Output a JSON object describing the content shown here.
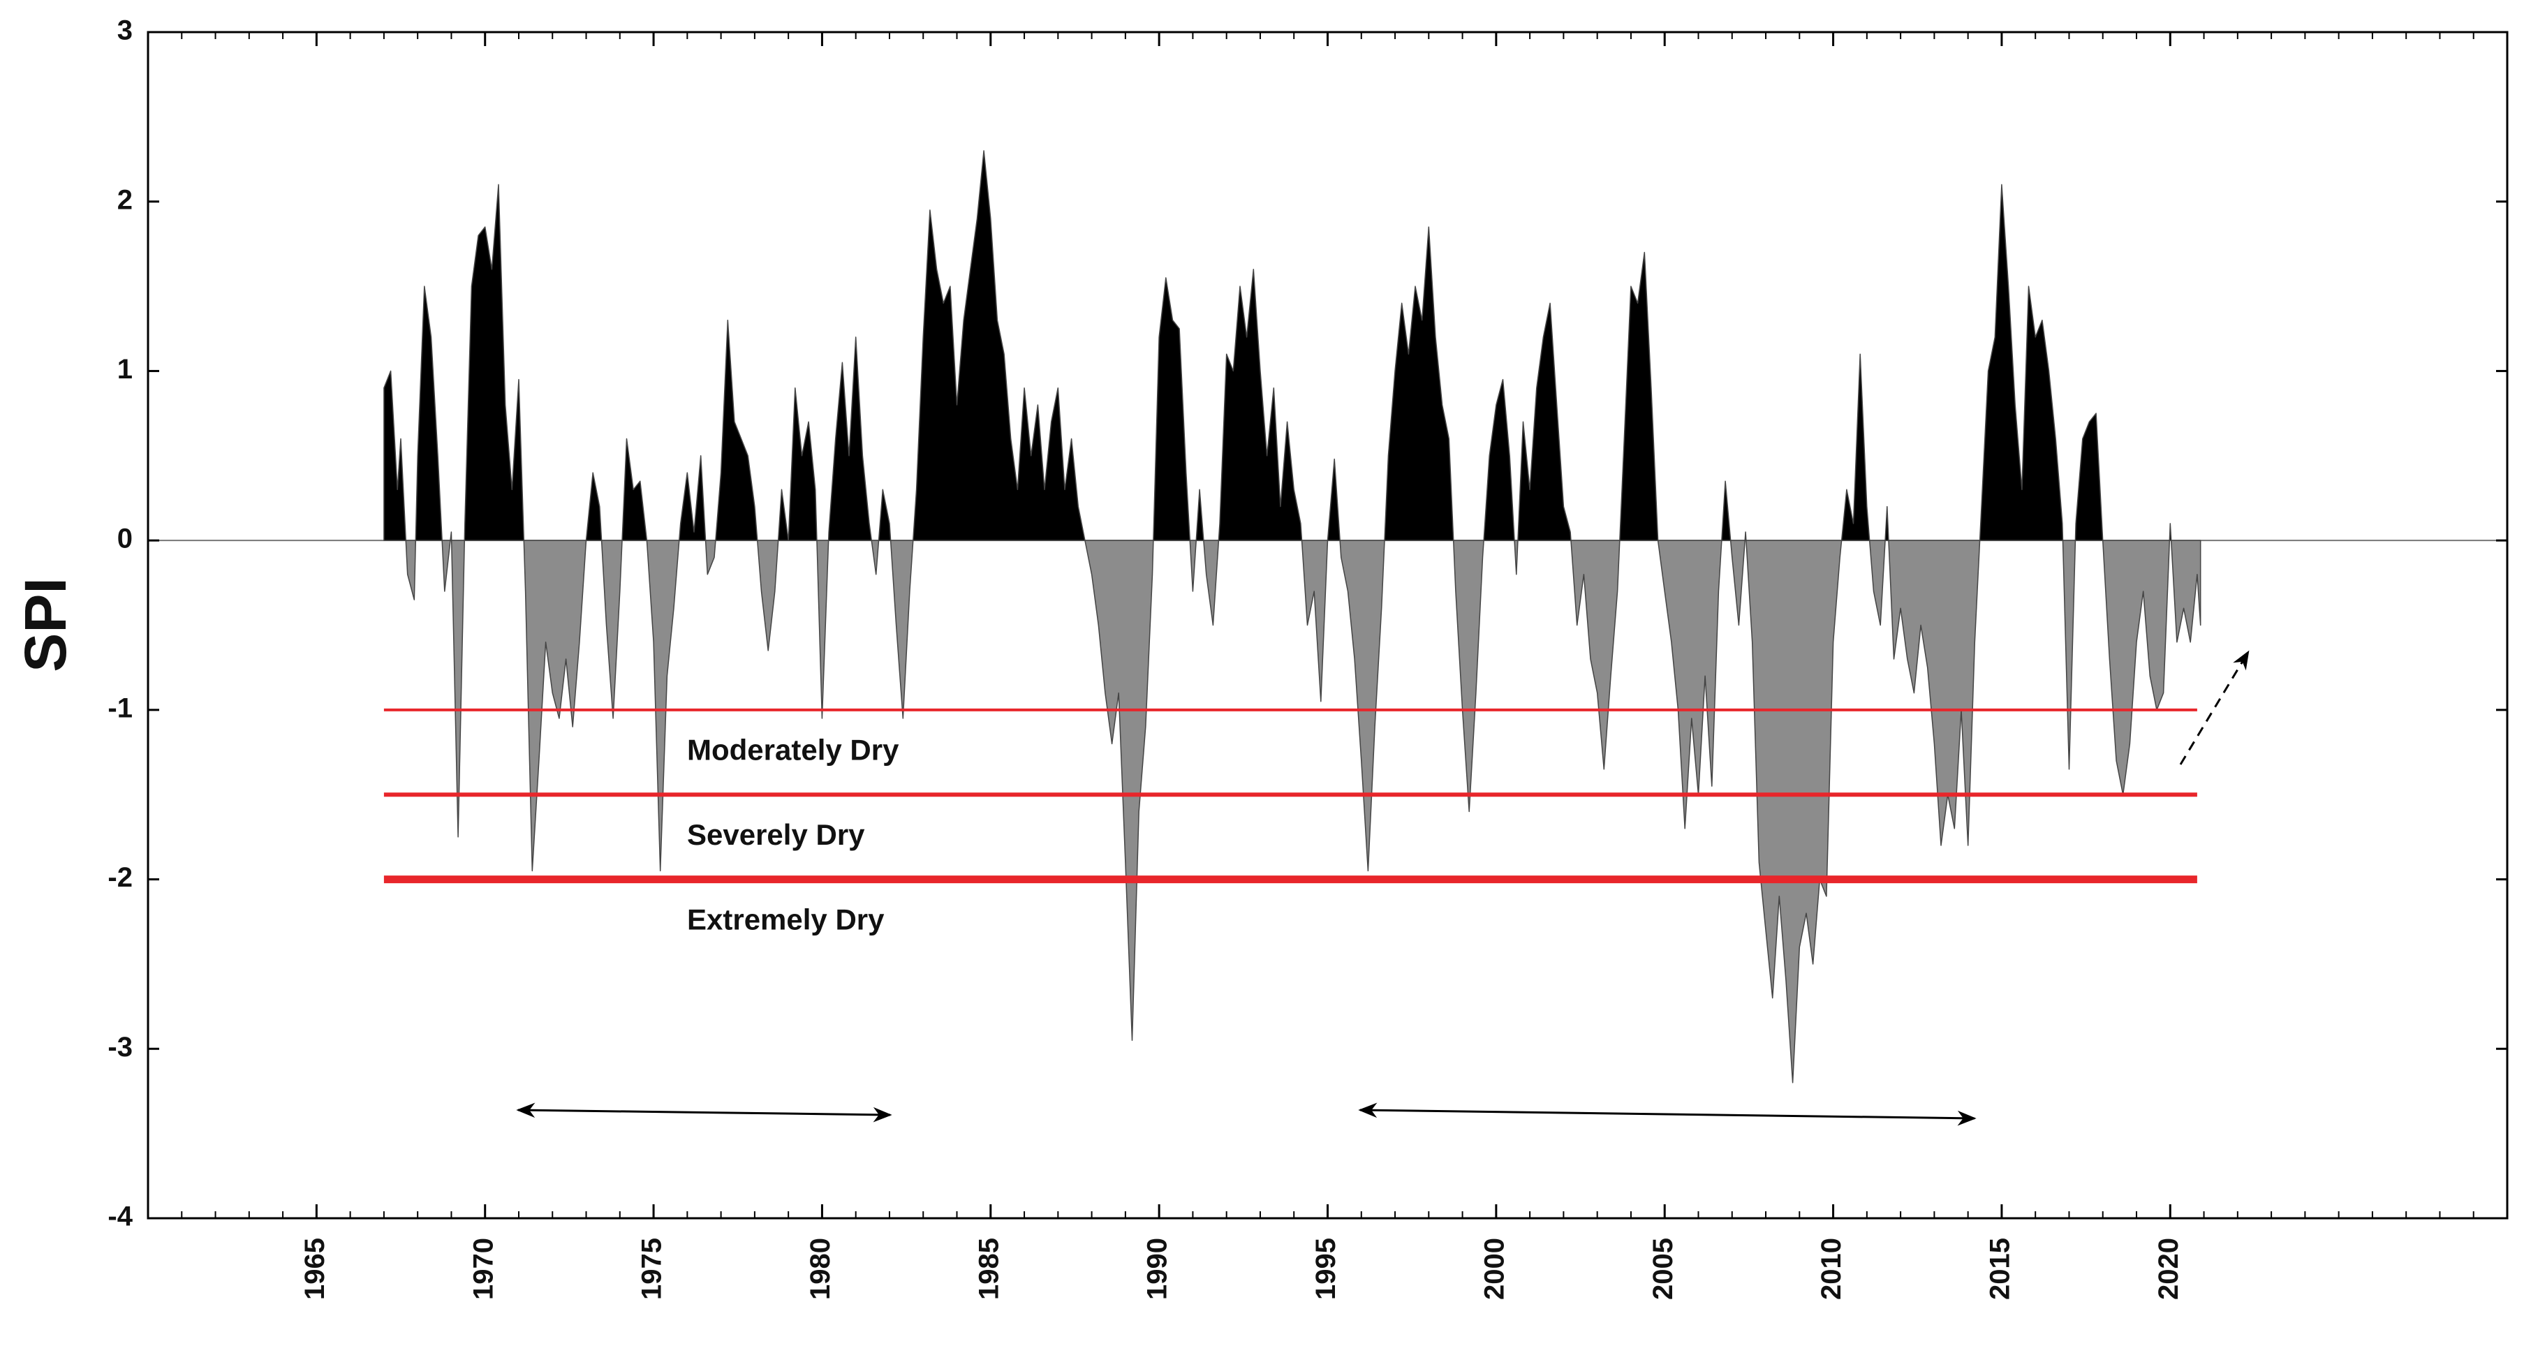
{
  "chart_data": {
    "type": "area",
    "ylabel": "SPI",
    "xlim": [
      1960,
      2030
    ],
    "xticks": [
      1965,
      1970,
      1975,
      1980,
      1985,
      1990,
      1995,
      2000,
      2005,
      2010,
      2015,
      2020
    ],
    "xminorticks": [
      1960,
      1961,
      1962,
      1963,
      1964,
      1965,
      1966,
      1967,
      1968,
      1969,
      1970,
      1971,
      1972,
      1973,
      1974,
      1975,
      1976,
      1977,
      1978,
      1979,
      1980,
      1981,
      1982,
      1983,
      1984,
      1985,
      1986,
      1987,
      1988,
      1989,
      1990,
      1991,
      1992,
      1993,
      1994,
      1995,
      1996,
      1997,
      1998,
      1999,
      2000,
      2001,
      2002,
      2003,
      2004,
      2005,
      2006,
      2007,
      2008,
      2009,
      2010,
      2011,
      2012,
      2013,
      2014,
      2015,
      2016,
      2017,
      2018,
      2019,
      2020,
      2021,
      2022,
      2023,
      2024,
      2025,
      2026,
      2027,
      2028,
      2029,
      2030
    ],
    "ylim": [
      -4,
      3
    ],
    "yticks": [
      -4,
      -3,
      -2,
      -1,
      0,
      1,
      2,
      3
    ],
    "positive_color": "#000000",
    "negative_color": "#8c8c8c",
    "thresholds": [
      {
        "value": -1,
        "label": "Moderately Dry",
        "color": "#e8262b"
      },
      {
        "value": -1.5,
        "label": "Severely Dry",
        "color": "#e8262b"
      },
      {
        "value": -2,
        "label": "Extremely Dry",
        "color": "#e8262b"
      }
    ],
    "threshold_span": [
      1967,
      2020.8
    ],
    "x": [
      1967.0,
      1967.2,
      1967.4,
      1967.5,
      1967.7,
      1967.9,
      1968.0,
      1968.2,
      1968.4,
      1968.6,
      1968.8,
      1969.0,
      1969.2,
      1969.4,
      1969.6,
      1969.8,
      1970.0,
      1970.2,
      1970.4,
      1970.6,
      1970.8,
      1971.0,
      1971.2,
      1971.4,
      1971.6,
      1971.8,
      1972.0,
      1972.2,
      1972.4,
      1972.6,
      1972.8,
      1973.0,
      1973.2,
      1973.4,
      1973.6,
      1973.8,
      1974.0,
      1974.2,
      1974.4,
      1974.6,
      1974.8,
      1975.0,
      1975.2,
      1975.4,
      1975.6,
      1975.8,
      1976.0,
      1976.2,
      1976.4,
      1976.6,
      1976.8,
      1977.0,
      1977.2,
      1977.4,
      1977.6,
      1977.8,
      1978.0,
      1978.2,
      1978.4,
      1978.6,
      1978.8,
      1979.0,
      1979.2,
      1979.4,
      1979.6,
      1979.8,
      1980.0,
      1980.2,
      1980.4,
      1980.6,
      1980.8,
      1981.0,
      1981.2,
      1981.4,
      1981.6,
      1981.8,
      1982.0,
      1982.2,
      1982.4,
      1982.6,
      1982.8,
      1983.0,
      1983.2,
      1983.4,
      1983.6,
      1983.8,
      1984.0,
      1984.2,
      1984.4,
      1984.6,
      1984.8,
      1985.0,
      1985.2,
      1985.4,
      1985.6,
      1985.8,
      1986.0,
      1986.2,
      1986.4,
      1986.6,
      1986.8,
      1987.0,
      1987.2,
      1987.4,
      1987.6,
      1987.8,
      1988.0,
      1988.2,
      1988.4,
      1988.6,
      1988.8,
      1989.0,
      1989.2,
      1989.4,
      1989.6,
      1989.8,
      1990.0,
      1990.2,
      1990.4,
      1990.6,
      1990.8,
      1991.0,
      1991.2,
      1991.4,
      1991.6,
      1991.8,
      1992.0,
      1992.2,
      1992.4,
      1992.6,
      1992.8,
      1993.0,
      1993.2,
      1993.4,
      1993.6,
      1993.8,
      1994.0,
      1994.2,
      1994.4,
      1994.6,
      1994.8,
      1995.0,
      1995.2,
      1995.4,
      1995.6,
      1995.8,
      1996.0,
      1996.2,
      1996.4,
      1996.6,
      1996.8,
      1997.0,
      1997.2,
      1997.4,
      1997.6,
      1997.8,
      1998.0,
      1998.2,
      1998.4,
      1998.6,
      1998.8,
      1999.0,
      1999.2,
      1999.4,
      1999.6,
      1999.8,
      2000.0,
      2000.2,
      2000.4,
      2000.6,
      2000.8,
      2001.0,
      2001.2,
      2001.4,
      2001.6,
      2001.8,
      2002.0,
      2002.2,
      2002.4,
      2002.6,
      2002.8,
      2003.0,
      2003.2,
      2003.4,
      2003.6,
      2003.8,
      2004.0,
      2004.2,
      2004.4,
      2004.6,
      2004.8,
      2005.0,
      2005.2,
      2005.4,
      2005.6,
      2005.8,
      2006.0,
      2006.2,
      2006.4,
      2006.6,
      2006.8,
      2007.0,
      2007.2,
      2007.4,
      2007.6,
      2007.8,
      2008.0,
      2008.2,
      2008.4,
      2008.6,
      2008.8,
      2009.0,
      2009.2,
      2009.4,
      2009.6,
      2009.8,
      2010.0,
      2010.2,
      2010.4,
      2010.6,
      2010.8,
      2011.0,
      2011.2,
      2011.4,
      2011.6,
      2011.8,
      2012.0,
      2012.2,
      2012.4,
      2012.6,
      2012.8,
      2013.0,
      2013.2,
      2013.4,
      2013.6,
      2013.8,
      2014.0,
      2014.2,
      2014.4,
      2014.6,
      2014.8,
      2015.0,
      2015.2,
      2015.4,
      2015.6,
      2015.8,
      2016.0,
      2016.2,
      2016.4,
      2016.6,
      2016.8,
      2017.0,
      2017.2,
      2017.4,
      2017.6,
      2017.8,
      2018.0,
      2018.2,
      2018.4,
      2018.6,
      2018.8,
      2019.0,
      2019.2,
      2019.4,
      2019.6,
      2019.8,
      2020.0,
      2020.2,
      2020.4,
      2020.6,
      2020.8,
      2020.9
    ],
    "values": [
      0.9,
      1.0,
      0.3,
      0.6,
      -0.2,
      -0.35,
      0.5,
      1.5,
      1.2,
      0.5,
      -0.3,
      0.05,
      -1.75,
      0.1,
      1.5,
      1.8,
      1.85,
      1.6,
      2.1,
      0.8,
      0.3,
      0.95,
      -0.3,
      -1.95,
      -1.3,
      -0.6,
      -0.9,
      -1.05,
      -0.7,
      -1.1,
      -0.6,
      0.0,
      0.4,
      0.2,
      -0.5,
      -1.05,
      -0.3,
      0.6,
      0.3,
      0.35,
      0.0,
      -0.6,
      -1.95,
      -0.8,
      -0.4,
      0.1,
      0.4,
      0.05,
      0.5,
      -0.2,
      -0.1,
      0.4,
      1.3,
      0.7,
      0.6,
      0.5,
      0.2,
      -0.3,
      -0.65,
      -0.3,
      0.3,
      0.0,
      0.9,
      0.5,
      0.7,
      0.3,
      -1.05,
      0.05,
      0.6,
      1.05,
      0.5,
      1.2,
      0.5,
      0.1,
      -0.2,
      0.3,
      0.1,
      -0.5,
      -1.05,
      -0.3,
      0.3,
      1.2,
      1.95,
      1.6,
      1.4,
      1.5,
      0.8,
      1.3,
      1.6,
      1.9,
      2.3,
      1.9,
      1.3,
      1.1,
      0.6,
      0.3,
      0.9,
      0.5,
      0.8,
      0.3,
      0.7,
      0.9,
      0.3,
      0.6,
      0.2,
      0.0,
      -0.2,
      -0.5,
      -0.9,
      -1.2,
      -0.9,
      -1.9,
      -2.95,
      -1.6,
      -1.1,
      -0.2,
      1.2,
      1.55,
      1.3,
      1.25,
      0.4,
      -0.3,
      0.3,
      -0.2,
      -0.5,
      0.1,
      1.1,
      1.0,
      1.5,
      1.2,
      1.6,
      1.0,
      0.5,
      0.9,
      0.2,
      0.7,
      0.3,
      0.1,
      -0.5,
      -0.3,
      -0.95,
      0.0,
      0.48,
      -0.1,
      -0.3,
      -0.7,
      -1.3,
      -1.95,
      -1.1,
      -0.4,
      0.5,
      1.0,
      1.4,
      1.1,
      1.5,
      1.3,
      1.85,
      1.2,
      0.8,
      0.6,
      -0.3,
      -1.0,
      -1.6,
      -0.9,
      -0.1,
      0.5,
      0.8,
      0.95,
      0.5,
      -0.2,
      0.7,
      0.3,
      0.9,
      1.2,
      1.4,
      0.8,
      0.2,
      0.05,
      -0.5,
      -0.2,
      -0.7,
      -0.9,
      -1.35,
      -0.8,
      -0.3,
      0.6,
      1.5,
      1.4,
      1.7,
      0.9,
      0.0,
      -0.3,
      -0.6,
      -1.0,
      -1.7,
      -1.05,
      -1.5,
      -0.8,
      -1.45,
      -0.3,
      0.35,
      -0.1,
      -0.5,
      0.05,
      -0.6,
      -1.9,
      -2.3,
      -2.7,
      -2.1,
      -2.6,
      -3.2,
      -2.4,
      -2.2,
      -2.5,
      -2.0,
      -2.1,
      -0.6,
      -0.1,
      0.3,
      0.1,
      1.1,
      0.2,
      -0.3,
      -0.5,
      0.2,
      -0.7,
      -0.4,
      -0.7,
      -0.9,
      -0.5,
      -0.75,
      -1.2,
      -1.8,
      -1.5,
      -1.7,
      -1.0,
      -1.8,
      -0.6,
      0.2,
      1.0,
      1.2,
      2.1,
      1.5,
      0.8,
      0.3,
      1.5,
      1.2,
      1.3,
      1.0,
      0.6,
      0.1,
      -1.35,
      0.1,
      0.6,
      0.7,
      0.75,
      0.0,
      -0.7,
      -1.3,
      -1.5,
      -1.2,
      -0.6,
      -0.3,
      -0.8,
      -1.0,
      -0.9,
      0.1,
      -0.6,
      -0.4,
      -0.6,
      -0.2,
      -0.5
    ]
  }
}
